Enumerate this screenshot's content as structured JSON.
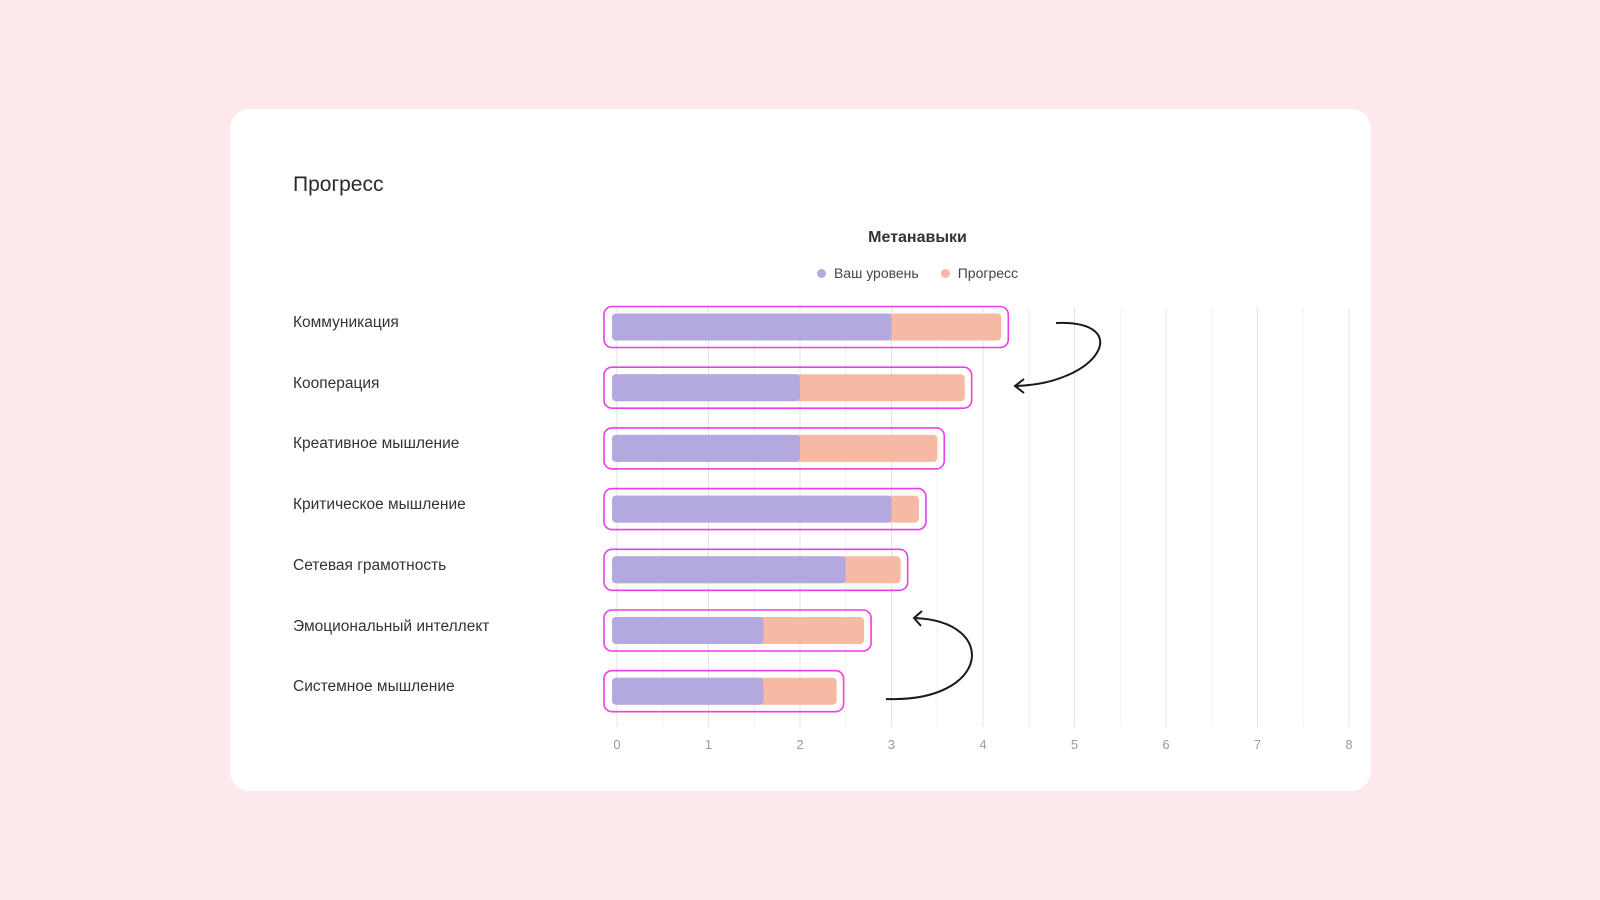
{
  "page": {
    "title": "Прогресс"
  },
  "colors": {
    "background": "#fde9ec",
    "card": "#ffffff",
    "level": "#b4a9de",
    "progress": "#f5b9a4",
    "highlight": "#e93ee8",
    "grid": "#e6e6e6"
  },
  "chart_data": {
    "type": "bar",
    "orientation": "horizontal",
    "stacked": true,
    "title": "Метанавыки",
    "categories": [
      "Коммуникация",
      "Кооперация",
      "Креативное мышление",
      "Критическое мышление",
      "Сетевая грамотность",
      "Эмоциональный интеллект",
      "Системное мышление"
    ],
    "series": [
      {
        "name": "Ваш уровень",
        "color": "#b4a9de",
        "values": [
          3.0,
          2.0,
          2.0,
          3.0,
          2.5,
          1.6,
          1.6
        ]
      },
      {
        "name": "Прогресс",
        "color": "#f5b9a4",
        "values": [
          1.2,
          1.8,
          1.5,
          0.3,
          0.6,
          1.1,
          0.8
        ]
      }
    ],
    "xlim": [
      0,
      8
    ],
    "xticks": [
      "0",
      "1",
      "2",
      "3",
      "4",
      "5",
      "6",
      "7",
      "8"
    ],
    "grid": true,
    "legend": "top-center",
    "annotations": [
      {
        "kind": "curved-arrow",
        "from": "Коммуникация",
        "to": "Кооперация"
      },
      {
        "kind": "curved-arrow",
        "from": "Системное мышление",
        "to": "Эмоциональный интеллект"
      }
    ]
  }
}
